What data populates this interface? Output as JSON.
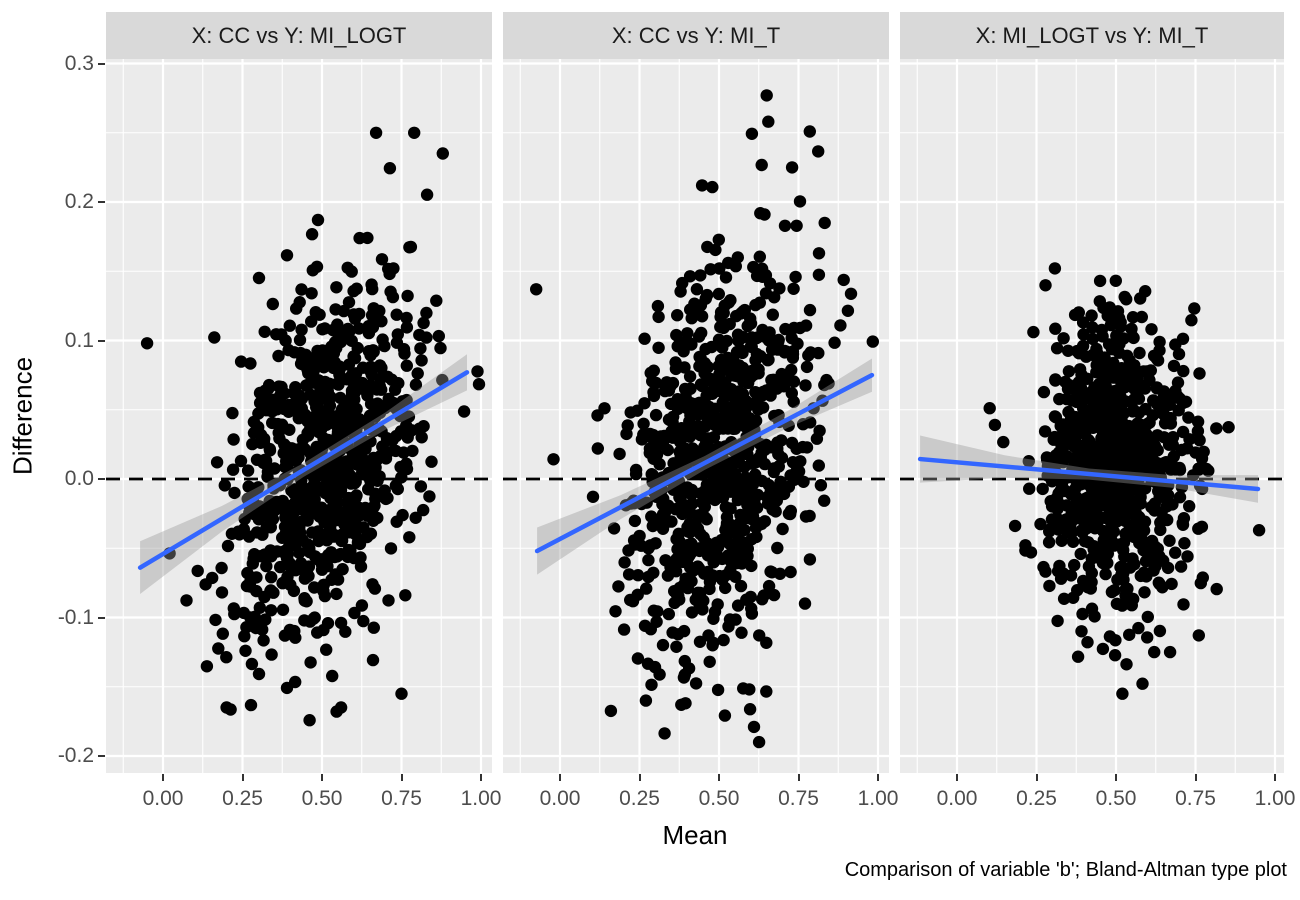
{
  "caption": "Comparison of variable 'b'; Bland-Altman type plot",
  "axes": {
    "x_title": "Mean",
    "y_title": "Difference",
    "x_tick_labels": [
      "0.00",
      "0.25",
      "0.50",
      "0.75",
      "1.00"
    ],
    "x_tick_values": [
      0,
      0.25,
      0.5,
      0.75,
      1.0
    ],
    "x_minor_values": [
      -0.125,
      0.125,
      0.375,
      0.625,
      0.875
    ],
    "y_tick_labels": [
      "0.3",
      "0.2",
      "0.1",
      "0.0",
      "-0.1",
      "-0.2"
    ],
    "y_tick_values": [
      0.3,
      0.2,
      0.1,
      0.0,
      -0.1,
      -0.2
    ],
    "y_minor_values": [
      0.25,
      0.15,
      0.05,
      -0.05,
      -0.15
    ],
    "x_range": [
      -0.179,
      1.035
    ],
    "y_range": [
      -0.212,
      0.304
    ]
  },
  "style": {
    "panel_background": "#EBEBEB",
    "strip_background": "#D9D9D9",
    "grid_color": "#FFFFFF",
    "point_color": "#000000",
    "smooth_line_color": "#3366FF",
    "ribbon_color": "rgba(153,153,153,0.4)",
    "reference_line_color": "#000000",
    "axis_text_color": "#4D4D4D"
  },
  "chart_data": [
    {
      "type": "scatter",
      "facet_title": "X: CC vs Y: MI_LOGT",
      "xlabel": "Mean",
      "ylabel": "Difference",
      "reference_line_y": 0.0,
      "reference_line_style": "dashed",
      "smooth": {
        "x": [
          -0.072,
          0.956
        ],
        "y": [
          -0.064,
          0.077
        ]
      },
      "ribbon_halfwidth": {
        "left": 0.019,
        "mid": 0.005,
        "right": 0.013
      },
      "points_cloud": {
        "n": 820,
        "seed": 101,
        "center_x": 0.52,
        "center_y": 0.015,
        "sd_x": 0.145,
        "sd_y": 0.062,
        "slope": 0.14,
        "clip_x": [
          -0.08,
          1.0
        ],
        "clip_y": [
          -0.175,
          0.26
        ]
      },
      "outlier_points": [
        [
          -0.05,
          0.098
        ],
        [
          0.79,
          0.25
        ],
        [
          0.67,
          0.25
        ],
        [
          0.88,
          0.235
        ],
        [
          0.2,
          -0.165
        ],
        [
          0.56,
          -0.165
        ],
        [
          0.75,
          -0.155
        ]
      ]
    },
    {
      "type": "scatter",
      "facet_title": "X: CC vs Y: MI_T",
      "xlabel": "Mean",
      "ylabel": "Difference",
      "reference_line_y": 0.0,
      "reference_line_style": "dashed",
      "smooth": {
        "x": [
          -0.072,
          0.981
        ],
        "y": [
          -0.052,
          0.075
        ]
      },
      "ribbon_halfwidth": {
        "left": 0.017,
        "mid": 0.005,
        "right": 0.012
      },
      "points_cloud": {
        "n": 820,
        "seed": 202,
        "center_x": 0.5,
        "center_y": 0.018,
        "sd_x": 0.145,
        "sd_y": 0.065,
        "slope": 0.13,
        "clip_x": [
          -0.08,
          1.0
        ],
        "clip_y": [
          -0.195,
          0.285
        ]
      },
      "outlier_points": [
        [
          -0.075,
          0.137
        ],
        [
          0.65,
          0.277
        ],
        [
          0.655,
          0.258
        ],
        [
          0.27,
          -0.16
        ],
        [
          0.61,
          -0.179
        ],
        [
          0.626,
          -0.19
        ],
        [
          0.73,
          0.225
        ]
      ]
    },
    {
      "type": "scatter",
      "facet_title": "X: MI_LOGT vs Y: MI_T",
      "xlabel": "Mean",
      "ylabel": "Difference",
      "reference_line_y": 0.0,
      "reference_line_style": "dashed",
      "smooth": {
        "x": [
          -0.116,
          0.9465
        ],
        "y": [
          0.0144,
          -0.0072
        ]
      },
      "ribbon_halfwidth": {
        "left": 0.017,
        "mid": 0.004,
        "right": 0.01
      },
      "points_cloud": {
        "n": 820,
        "seed": 303,
        "center_x": 0.5,
        "center_y": 0.012,
        "sd_x": 0.115,
        "sd_y": 0.052,
        "slope": -0.02,
        "clip_x": [
          0.05,
          0.97
        ],
        "clip_y": [
          -0.16,
          0.155
        ]
      },
      "outlier_points": [
        [
          0.45,
          0.143
        ],
        [
          0.52,
          -0.155
        ],
        [
          0.62,
          -0.125
        ],
        [
          0.67,
          -0.125
        ],
        [
          0.95,
          -0.037
        ]
      ]
    }
  ]
}
